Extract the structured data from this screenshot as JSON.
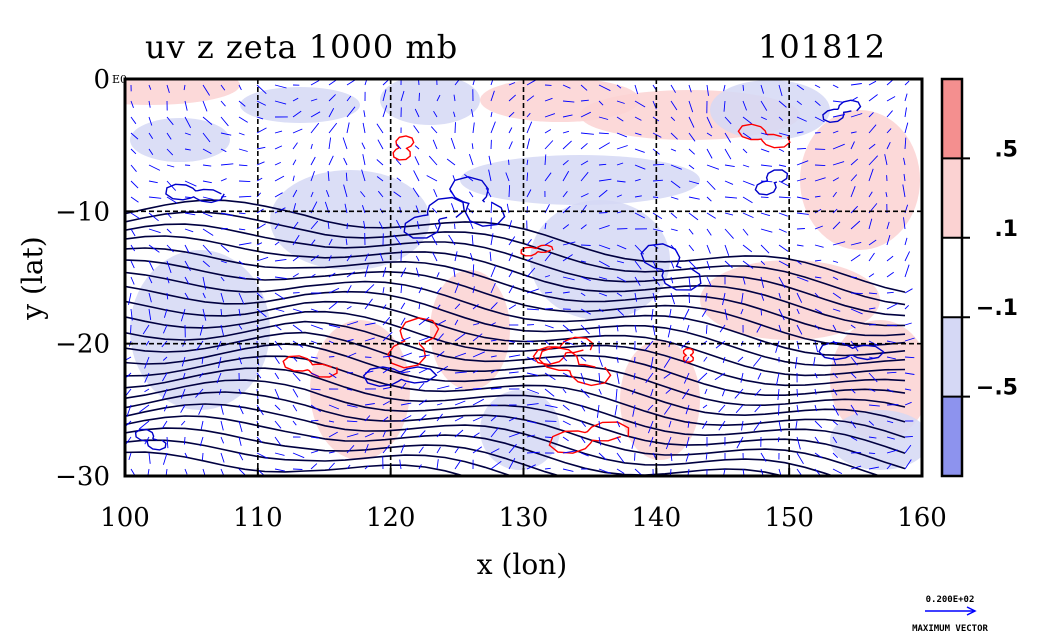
{
  "chart_data": {
    "type": "heatmap",
    "title": "uv z zeta 1000 mb",
    "time_label": "101812",
    "xlabel": "x (lon)",
    "ylabel": "y (lat)",
    "xlim": [
      100,
      160
    ],
    "ylim": [
      -30,
      0
    ],
    "x_ticks": [
      100,
      110,
      120,
      130,
      140,
      150,
      160
    ],
    "y_ticks": [
      0,
      -10,
      -20,
      -30
    ],
    "x_tick_labels": [
      "100",
      "110",
      "120",
      "130",
      "140",
      "150",
      "160"
    ],
    "y_tick_labels": [
      "0",
      "−10",
      "−20",
      "−30"
    ],
    "y_tick_extra": "E0",
    "grid": true,
    "colorbar": {
      "levels": [
        ".5",
        ".1",
        "−.1",
        "−.5"
      ],
      "colors": [
        "#f48f8f",
        "#fbd2d2",
        "#ffffff",
        "#d5d8f5",
        "#8d93ee"
      ]
    },
    "contour_colors": {
      "positive": "#ff0000",
      "negative": "#0000c8",
      "height": "#000040"
    },
    "vector_color": "#0000ff",
    "max_vector_label": "0.200E+02",
    "max_vector_caption": "MAXIMUM VECTOR"
  }
}
